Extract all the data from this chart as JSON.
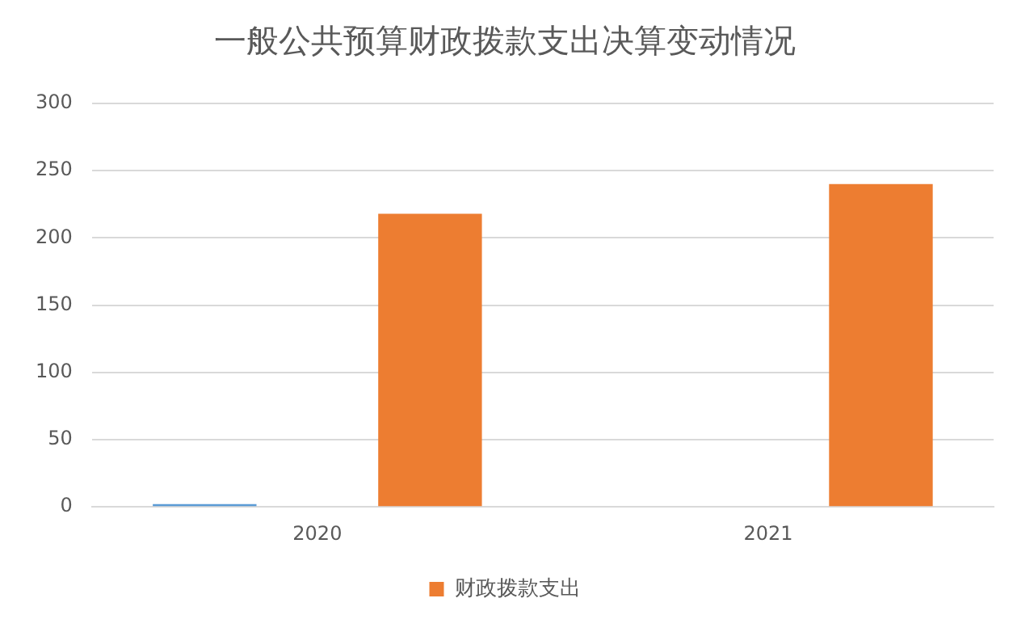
{
  "chart_data": {
    "type": "bar",
    "title": "一般公共预算财政拨款支出决算变动情况",
    "categories": [
      "2020",
      "2021"
    ],
    "series": [
      {
        "color": "#5b9bd5",
        "values": [
          2,
          null
        ]
      },
      {
        "name": "财政拨款支出",
        "color": "#ed7d31",
        "values": [
          218,
          240
        ]
      }
    ],
    "ylim": [
      0,
      300
    ],
    "yticks": [
      0,
      50,
      100,
      150,
      200,
      250,
      300
    ],
    "grid": "y",
    "legend": "bottom"
  }
}
